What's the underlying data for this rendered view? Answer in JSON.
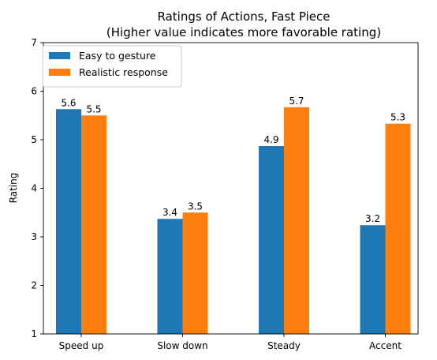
{
  "chart_data": {
    "type": "bar",
    "title": "Ratings of Actions, Fast Piece",
    "subtitle": "(Higher value indicates more favorable rating)",
    "xlabel": "",
    "ylabel": "Rating",
    "ylim": [
      1,
      7
    ],
    "yticks": [
      "1",
      "2",
      "3",
      "4",
      "5",
      "6",
      "7"
    ],
    "categories": [
      "Speed up",
      "Slow down",
      "Steady",
      "Accent"
    ],
    "series": [
      {
        "name": "Easy to gesture",
        "color": "#1f77b4",
        "values": [
          5.63,
          3.37,
          4.87,
          3.24
        ],
        "labels": [
          "5.6",
          "3.4",
          "4.9",
          "3.2"
        ]
      },
      {
        "name": "Realistic response",
        "color": "#ff7f0e",
        "values": [
          5.5,
          3.5,
          5.67,
          5.33
        ],
        "labels": [
          "5.5",
          "3.5",
          "5.7",
          "5.3"
        ]
      }
    ],
    "legend_position": "top-left",
    "grid": false
  }
}
